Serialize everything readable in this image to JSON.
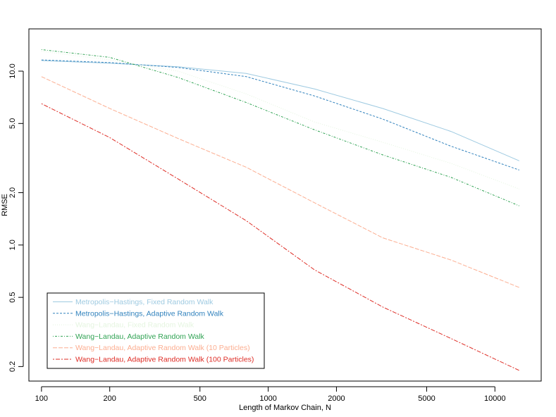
{
  "chart_data": {
    "type": "line",
    "title": "",
    "xlabel": "Length of Markov Chain, N",
    "ylabel": "RMSE",
    "x_scale": "log",
    "y_scale": "log",
    "xlim": [
      88,
      16000
    ],
    "ylim": [
      0.165,
      17.5
    ],
    "grid": false,
    "legend_position": "bottom-left",
    "x_ticks": [
      100,
      200,
      500,
      1000,
      2000,
      5000,
      10000
    ],
    "x_tick_labels": [
      "100",
      "200",
      "500",
      "1000",
      "2000",
      "5000",
      "10000"
    ],
    "y_ticks": [
      0.2,
      0.5,
      1.0,
      2.0,
      5.0,
      10.0
    ],
    "y_tick_labels": [
      "0.2",
      "0.5",
      "1.0",
      "2.0",
      "5.0",
      "10.0"
    ],
    "x": [
      100,
      200,
      400,
      800,
      1600,
      3200,
      6400,
      12800
    ],
    "series": [
      {
        "name": "Metropolis−Hastings, Fixed Random Walk",
        "color": "#9ecae1",
        "dash": "solid",
        "values": [
          11.5,
          11.1,
          10.6,
          9.7,
          7.9,
          6.1,
          4.5,
          3.05
        ]
      },
      {
        "name": "Metropolis−Hastings, Adaptive Random Walk",
        "color": "#3182bd",
        "dash": "dashed",
        "values": [
          11.6,
          11.2,
          10.5,
          9.3,
          7.2,
          5.3,
          3.7,
          2.7
        ]
      },
      {
        "name": "Wang−Landau, Fixed Random Walk",
        "color": "#e5f5e0",
        "dash": "dotted",
        "values": [
          13.0,
          11.6,
          10.0,
          7.4,
          5.1,
          3.9,
          2.95,
          2.1
        ]
      },
      {
        "name": "Wang−Landau, Adaptive Random Walk",
        "color": "#31a354",
        "dash": "dotdash",
        "values": [
          13.3,
          12.0,
          9.2,
          6.6,
          4.6,
          3.3,
          2.45,
          1.68
        ]
      },
      {
        "name": "Wang−Landau, Adaptive Random Walk (10 Particles)",
        "color": "#fcae91",
        "dash": "longdash",
        "values": [
          9.3,
          6.1,
          4.1,
          2.8,
          1.75,
          1.1,
          0.82,
          0.57
        ]
      },
      {
        "name": "Wang−Landau, Adaptive Random Walk (100 Particles)",
        "color": "#de2d26",
        "dash": "twodash",
        "values": [
          6.5,
          4.15,
          2.4,
          1.38,
          0.72,
          0.44,
          0.29,
          0.19
        ]
      }
    ]
  }
}
